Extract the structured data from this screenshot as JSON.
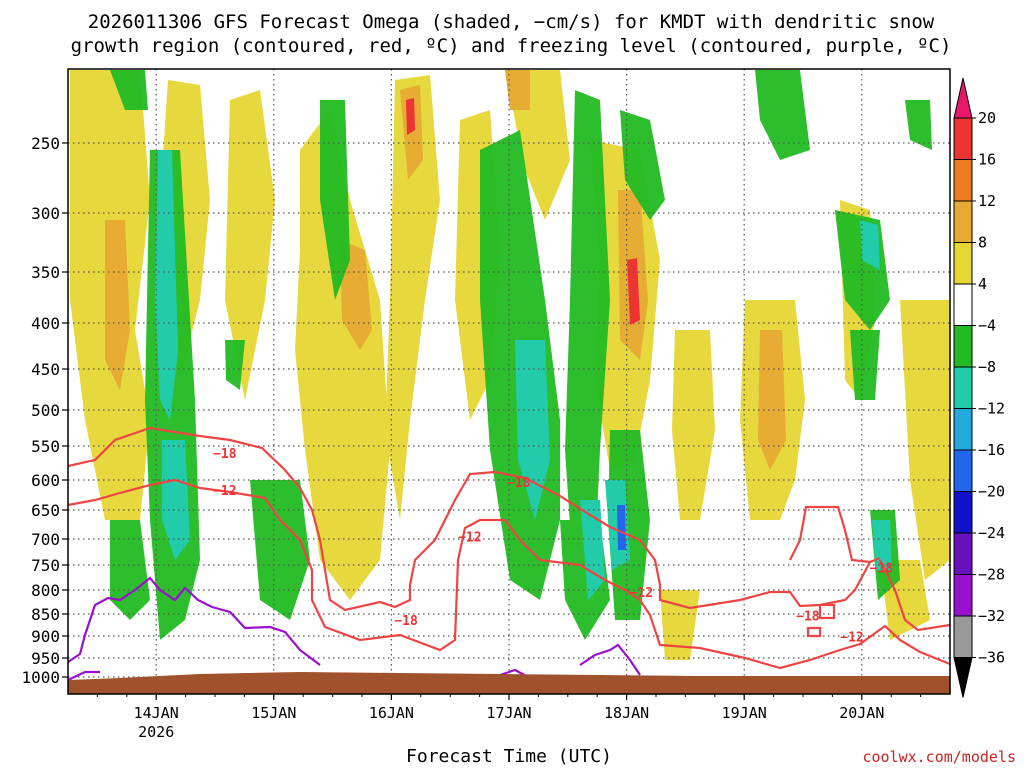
{
  "chart_data": {
    "type": "heatmap",
    "title_line1": "2026011306 GFS Forecast Omega (shaded, −cm/s) for KMDT with dendritic snow",
    "title_line2": "growth region (contoured, red, ºC) and freezing level (contoured, purple, ºC)",
    "xlabel": "Forecast Time (UTC)",
    "ylabel": "",
    "credit": "coolwx.com/models",
    "x_ticks": [
      {
        "label": "14JAN",
        "sub": "2026",
        "hours": 18
      },
      {
        "label": "15JAN",
        "sub": "",
        "hours": 42
      },
      {
        "label": "16JAN",
        "sub": "",
        "hours": 66
      },
      {
        "label": "17JAN",
        "sub": "",
        "hours": 90
      },
      {
        "label": "18JAN",
        "sub": "",
        "hours": 114
      },
      {
        "label": "19JAN",
        "sub": "",
        "hours": 138
      },
      {
        "label": "20JAN",
        "sub": "",
        "hours": 162
      }
    ],
    "xlim_hours": [
      0,
      180
    ],
    "y_ticks": [
      "250",
      "300",
      "350",
      "400",
      "450",
      "500",
      "550",
      "600",
      "650",
      "700",
      "750",
      "800",
      "850",
      "900",
      "950",
      "1000"
    ],
    "y_values": [
      250,
      300,
      350,
      400,
      450,
      500,
      550,
      600,
      650,
      700,
      750,
      800,
      850,
      900,
      950,
      1000
    ],
    "ylim_hPa": [
      200,
      1030
    ],
    "colorbar_labels": [
      "20",
      "16",
      "12",
      "8",
      "4",
      "−4",
      "−8",
      "−12",
      "−16",
      "−20",
      "−24",
      "−28",
      "−32",
      "−36"
    ],
    "colorbar_colors": [
      "#e8176c",
      "#ee3333",
      "#ee7b22",
      "#e6aa33",
      "#e6d633",
      "#ffffff",
      "#22bb22",
      "#22ccaa",
      "#22aadd",
      "#2266ee",
      "#1111cc",
      "#6611bb",
      "#9911cc",
      "#999999",
      "#000000"
    ],
    "contour_labels": [
      {
        "text": "−18",
        "hours": 32,
        "hPa": 568
      },
      {
        "text": "−12",
        "hours": 32,
        "hPa": 625
      },
      {
        "text": "−18",
        "hours": 92,
        "hPa": 612
      },
      {
        "text": "−12",
        "hours": 82,
        "hPa": 705
      },
      {
        "text": "−18",
        "hours": 69,
        "hPa": 875
      },
      {
        "text": "−12",
        "hours": 117,
        "hPa": 815
      },
      {
        "text": "−18",
        "hours": 151,
        "hPa": 865
      },
      {
        "text": "−12",
        "hours": 160,
        "hPa": 912
      },
      {
        "text": "−18",
        "hours": 166,
        "hPa": 765
      }
    ],
    "ground_color": "#a0522d",
    "freezing_level_color": "#9911cc",
    "dgz_color": "#ee4444"
  }
}
